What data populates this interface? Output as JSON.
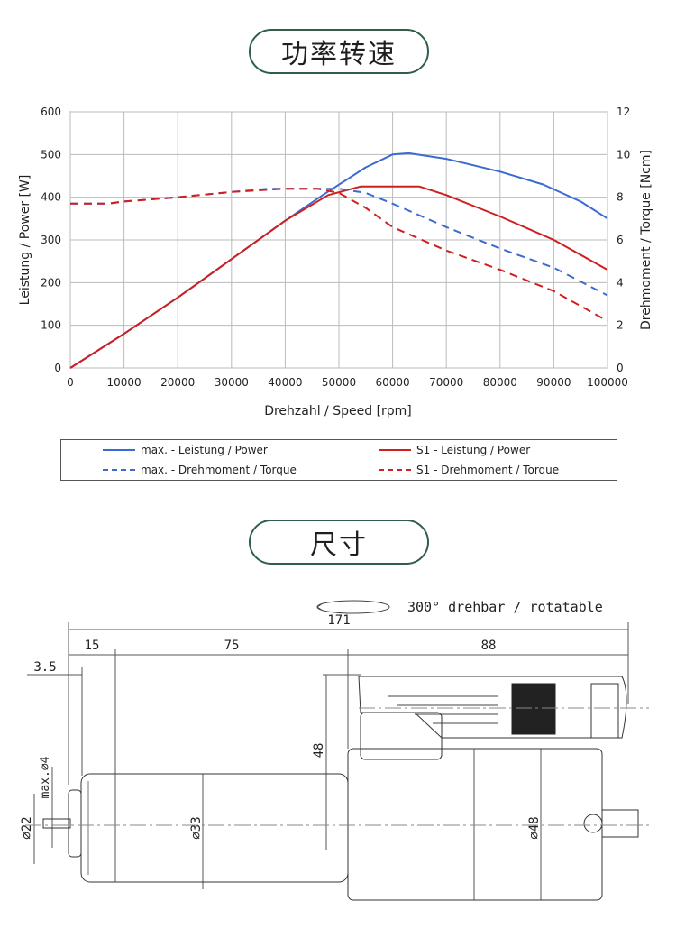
{
  "headers": {
    "power_speed": "功率转速",
    "dimensions": "尺寸"
  },
  "chart_data": {
    "type": "line",
    "xlabel": "Drehzahl / Speed [rpm]",
    "ylabel": "Leistung / Power [W]",
    "y2label": "Drehmoment / Torque [Ncm]",
    "xlim": [
      0,
      100000
    ],
    "ylim": [
      0,
      600
    ],
    "y2lim": [
      0,
      12
    ],
    "xticks": [
      "0",
      "10000",
      "20000",
      "30000",
      "40000",
      "50000",
      "60000",
      "70000",
      "80000",
      "90000",
      "100000"
    ],
    "yticks": [
      "0",
      "100",
      "200",
      "300",
      "400",
      "500",
      "600"
    ],
    "y2ticks": [
      "0",
      "2",
      "4",
      "6",
      "8",
      "10",
      "12"
    ],
    "grid": true,
    "series": [
      {
        "name": "max. - Leistung / Power",
        "axis": "left",
        "color": "#3b6bd1",
        "dash": false,
        "x": [
          0,
          10000,
          20000,
          30000,
          40000,
          47000,
          55000,
          60000,
          63000,
          70000,
          80000,
          88000,
          95000,
          100000
        ],
        "y": [
          0,
          80,
          165,
          255,
          345,
          405,
          470,
          500,
          503,
          490,
          460,
          430,
          390,
          350
        ]
      },
      {
        "name": "S1 - Leistung / Power",
        "axis": "left",
        "color": "#cf1f1f",
        "dash": false,
        "x": [
          0,
          10000,
          20000,
          30000,
          40000,
          48000,
          54000,
          60000,
          65000,
          70000,
          80000,
          90000,
          100000
        ],
        "y": [
          0,
          80,
          165,
          255,
          345,
          405,
          425,
          425,
          425,
          405,
          355,
          300,
          230
        ]
      },
      {
        "name": "max. - Drehmoment / Torque",
        "axis": "right",
        "color": "#3b6bd1",
        "dash": true,
        "x": [
          0,
          7000,
          10000,
          20000,
          30000,
          37000,
          45000,
          50000,
          55000,
          60000,
          70000,
          80000,
          90000,
          100000
        ],
        "y": [
          7.7,
          7.7,
          7.8,
          8.0,
          8.25,
          8.4,
          8.4,
          8.4,
          8.2,
          7.7,
          6.6,
          5.6,
          4.7,
          3.4
        ]
      },
      {
        "name": "S1 - Drehmoment / Torque",
        "axis": "right",
        "color": "#cf1f1f",
        "dash": true,
        "x": [
          0,
          7000,
          10000,
          20000,
          30000,
          40000,
          46000,
          50000,
          55000,
          60000,
          70000,
          80000,
          90000,
          100000
        ],
        "y": [
          7.7,
          7.7,
          7.8,
          8.0,
          8.25,
          8.4,
          8.4,
          8.2,
          7.5,
          6.6,
          5.5,
          4.6,
          3.6,
          2.2
        ]
      }
    ]
  },
  "drawing": {
    "note": "300° drehbar / rotatable",
    "dim_total": "171",
    "dim_15": "15",
    "dim_75": "75",
    "dim_88": "88",
    "dim_3_5": "3.5",
    "dim_48_height": "48",
    "dia_4": "max.⌀4",
    "dia_22": "⌀22",
    "dia_33": "⌀33",
    "dia_48": "⌀48"
  }
}
